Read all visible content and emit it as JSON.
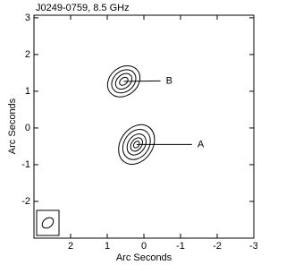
{
  "chart_data": {
    "type": "contour",
    "title": "J0249-0759, 8.5 GHz",
    "xlabel": "Arc Seconds",
    "ylabel": "Arc Seconds",
    "xlim": [
      3,
      -3
    ],
    "ylim": [
      -3,
      3.07
    ],
    "xticks": [
      2,
      1,
      0,
      -1,
      -2,
      -3
    ],
    "yticks": [
      -2,
      -1,
      0,
      1,
      2,
      3
    ],
    "color": "#000000",
    "components": [
      {
        "label": "B",
        "x": 0.55,
        "y": 1.27,
        "label_x": -0.6,
        "label_y": 1.28,
        "angle": -40,
        "contours": [
          [
            0.48,
            0.38
          ],
          [
            0.36,
            0.28
          ],
          [
            0.25,
            0.18
          ],
          [
            0.13,
            0.09
          ]
        ]
      },
      {
        "label": "A",
        "x": 0.2,
        "y": -0.45,
        "label_x": -1.46,
        "label_y": -0.45,
        "angle": -55,
        "contours": [
          [
            0.58,
            0.44
          ],
          [
            0.44,
            0.34
          ],
          [
            0.31,
            0.23
          ],
          [
            0.2,
            0.14
          ],
          [
            0.1,
            0.07
          ]
        ]
      }
    ]
  }
}
